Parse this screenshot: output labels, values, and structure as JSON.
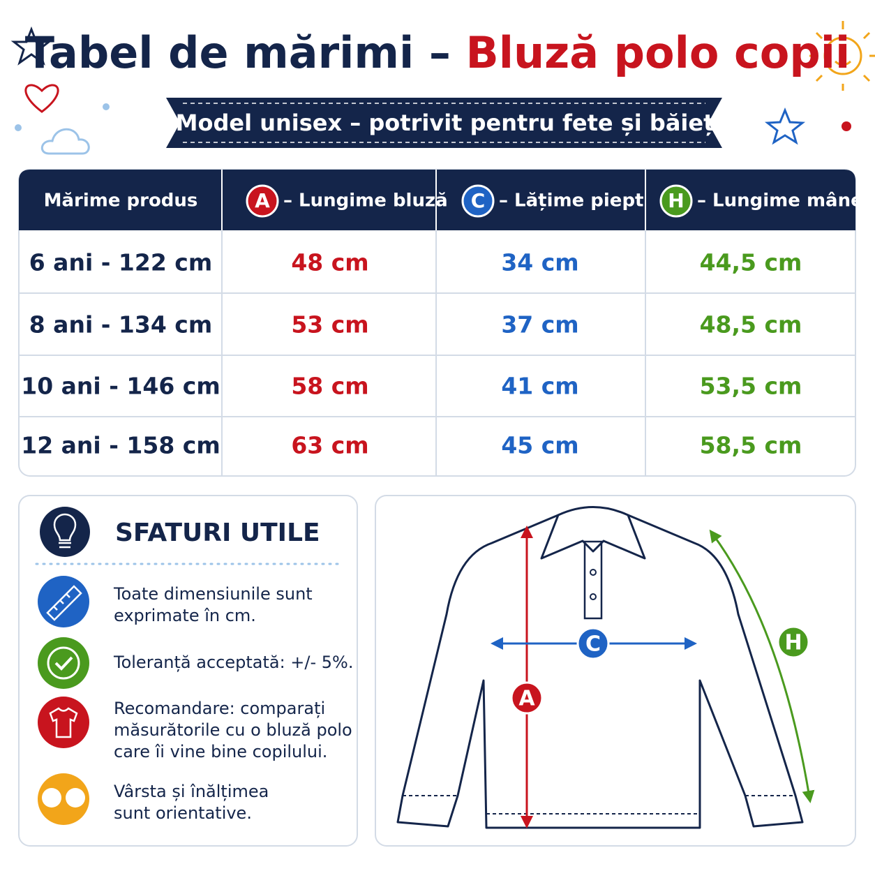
{
  "header": {
    "title_part1": "Tabel de mărimi –",
    "title_part2": "Bluză polo copii",
    "subtitle": "Model unisex – potrivit pentru fete și băieți"
  },
  "table": {
    "columns": [
      {
        "text": "Mărime produs"
      },
      {
        "badge": "A",
        "text": "– Lungime bluză"
      },
      {
        "badge": "C",
        "text": "– Lățime piept"
      },
      {
        "badge": "H",
        "text": "– Lungime mânecă"
      }
    ],
    "rows": [
      [
        "6 ani - 122 cm",
        "48 cm",
        "34 cm",
        "44,5 cm"
      ],
      [
        "8 ani - 134 cm",
        "53 cm",
        "37 cm",
        "48,5 cm"
      ],
      [
        "10 ani - 146 cm",
        "58 cm",
        "41 cm",
        "53,5 cm"
      ],
      [
        "12 ani - 158 cm",
        "63 cm",
        "45 cm",
        "58,5 cm"
      ]
    ]
  },
  "tips": {
    "title": "SFATURI UTILE",
    "items": [
      [
        "Toate dimensiunile sunt",
        "exprimate în cm."
      ],
      [
        "Toleranță acceptată: +/- 5%."
      ],
      [
        "Recomandare: comparați",
        "măsurătorile cu o bluză polo",
        "care îi vine bine copilului."
      ],
      [
        "Vârsta și înălțimea",
        "sunt orientative."
      ]
    ]
  },
  "diagram": {
    "labels": [
      "A",
      "C",
      "H"
    ]
  }
}
